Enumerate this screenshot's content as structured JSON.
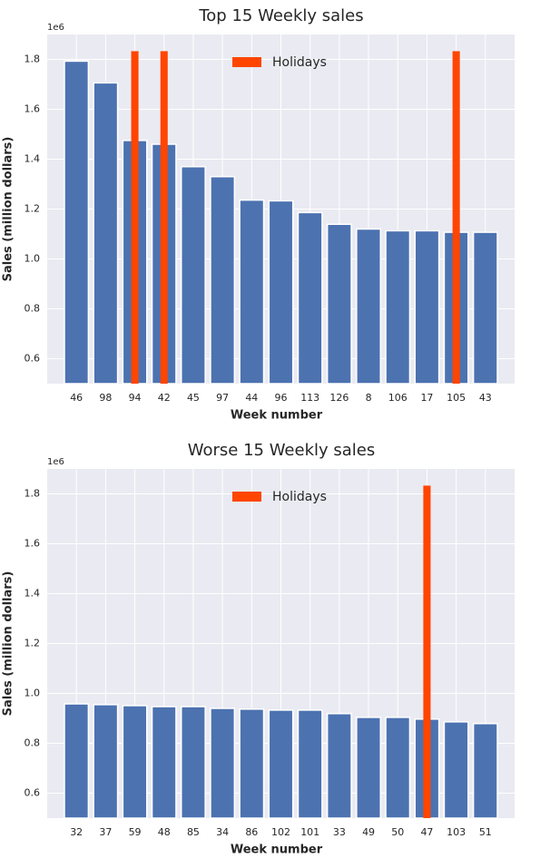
{
  "chart_data": [
    {
      "type": "bar",
      "title": "Top 15 Weekly sales",
      "offset_label": "1e6",
      "xlabel": "Week number",
      "ylabel": "Sales (million dollars)",
      "categories": [
        "46",
        "98",
        "94",
        "42",
        "45",
        "97",
        "44",
        "96",
        "113",
        "126",
        "8",
        "106",
        "17",
        "105",
        "43"
      ],
      "values": [
        1.793,
        1.706,
        1.475,
        1.46,
        1.37,
        1.33,
        1.236,
        1.233,
        1.186,
        1.139,
        1.12,
        1.113,
        1.113,
        1.107,
        1.107
      ],
      "color": "#4c72b0",
      "series": [
        {
          "name": "Holidays",
          "color": "#ff4500",
          "values": [
            null,
            null,
            1.833,
            1.833,
            null,
            null,
            null,
            null,
            null,
            null,
            null,
            null,
            null,
            1.833,
            null
          ]
        }
      ],
      "ylim": [
        0.5,
        1.9
      ],
      "yticks": [
        0.6,
        0.8,
        {
          "value": 1,
          "label": "1.0"
        },
        1.2,
        1.4,
        1.6,
        1.8
      ],
      "grid": true,
      "legend": "upper center"
    },
    {
      "type": "bar",
      "title": "Worse 15 Weekly sales",
      "offset_label": "1e6",
      "xlabel": "Week number",
      "ylabel": "Sales (million dollars)",
      "categories": [
        "32",
        "37",
        "59",
        "48",
        "85",
        "34",
        "86",
        "102",
        "101",
        "33",
        "49",
        "50",
        "47",
        "103",
        "51"
      ],
      "values": [
        0.958,
        0.955,
        0.951,
        0.947,
        0.947,
        0.94,
        0.937,
        0.933,
        0.933,
        0.919,
        0.904,
        0.904,
        0.897,
        0.886,
        0.879
      ],
      "color": "#4c72b0",
      "series": [
        {
          "name": "Holidays",
          "color": "#ff4500",
          "values": [
            null,
            null,
            null,
            null,
            null,
            null,
            null,
            null,
            null,
            null,
            null,
            null,
            1.833,
            null,
            null
          ]
        }
      ],
      "ylim": [
        0.5,
        1.9
      ],
      "yticks": [
        0.6,
        0.8,
        {
          "value": 1,
          "label": "1.0"
        },
        1.2,
        1.4,
        1.6,
        1.8
      ],
      "grid": true,
      "legend": "upper center"
    }
  ]
}
